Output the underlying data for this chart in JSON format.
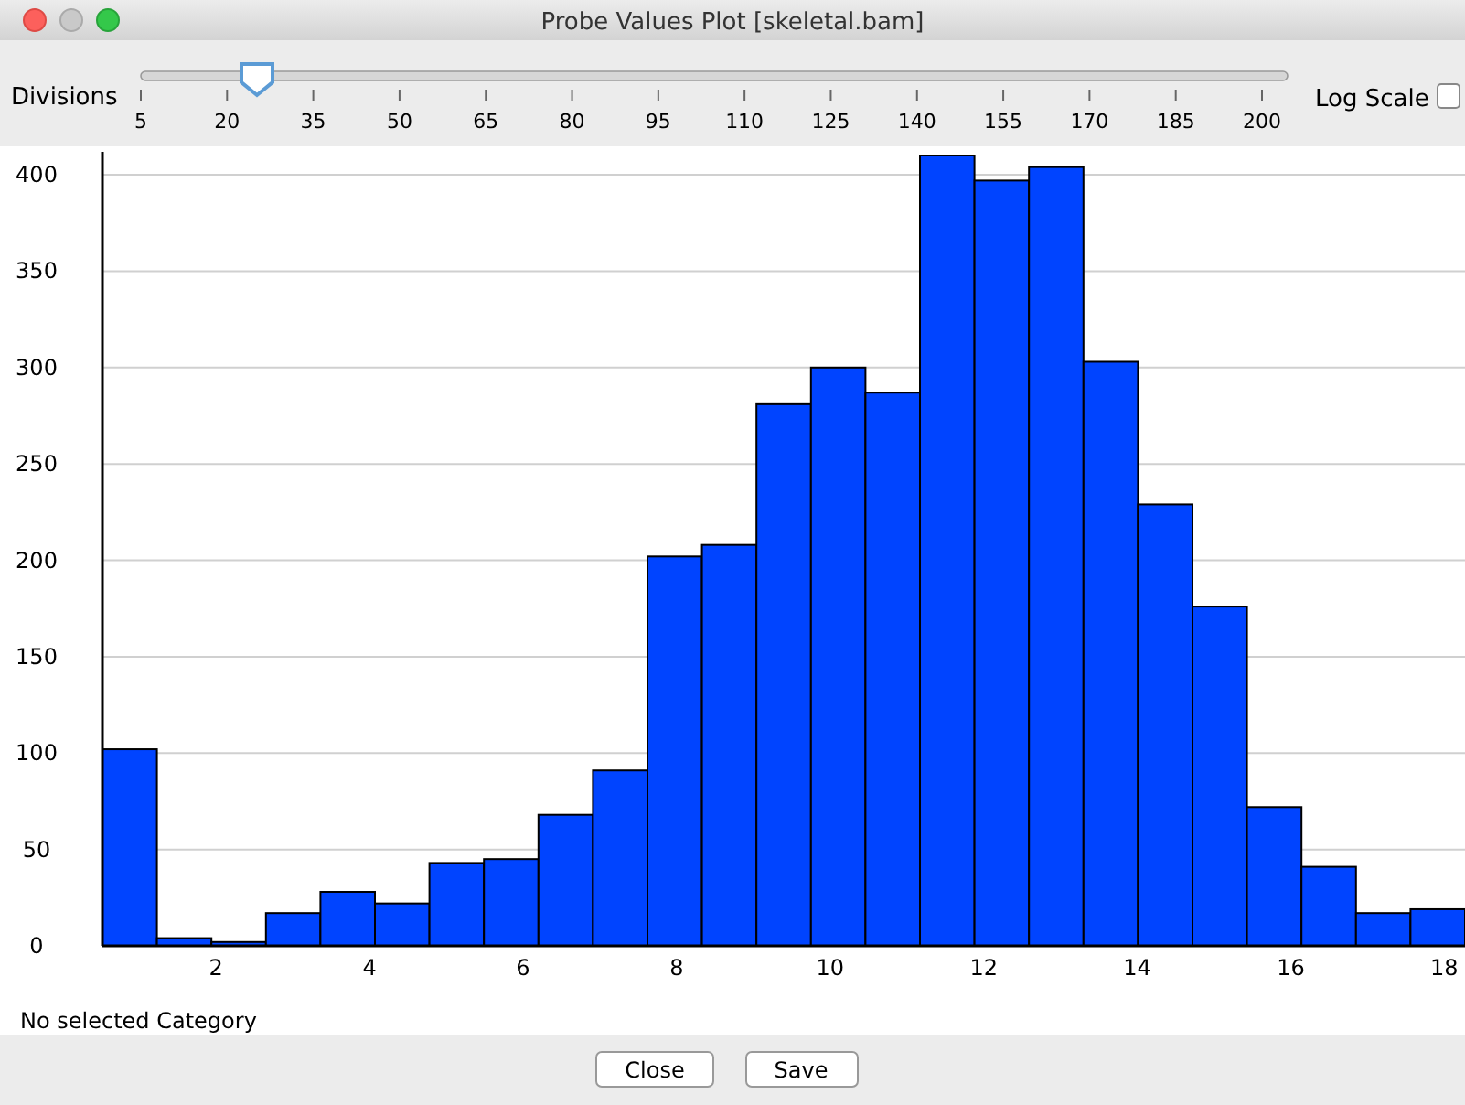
{
  "chart_data": {
    "type": "histogram",
    "title": "Probe Values Plot [skeletal.bam]",
    "bins": [
      0.52,
      1.23,
      1.94,
      2.65,
      3.36,
      4.07,
      4.78,
      5.49,
      6.2,
      6.91,
      7.62,
      8.33,
      9.04,
      9.75,
      10.46,
      11.17,
      11.88,
      12.59,
      13.3,
      14.01,
      14.72,
      15.43,
      16.14,
      16.85,
      17.56,
      18.27
    ],
    "values": [
      102,
      4,
      2,
      17,
      28,
      22,
      43,
      45,
      68,
      91,
      202,
      208,
      281,
      300,
      287,
      410,
      397,
      404,
      303,
      229,
      176,
      72,
      41,
      17,
      19
    ],
    "color": "#0044ff",
    "xlim": [
      0.52,
      18.27
    ],
    "xticks": [
      2,
      4,
      6,
      8,
      10,
      12,
      14,
      16,
      18
    ],
    "ylim": [
      0,
      410
    ],
    "yticks": [
      0,
      50,
      100,
      150,
      200,
      250,
      300,
      350,
      400
    ],
    "grid": "y",
    "annotations": [
      "Divisions",
      "5",
      "20",
      "35",
      "50",
      "65",
      "80",
      "95",
      "110",
      "125",
      "140",
      "155",
      "170",
      "185",
      "200",
      "Log Scale",
      "No selected Category",
      "Close",
      "Save"
    ]
  }
}
